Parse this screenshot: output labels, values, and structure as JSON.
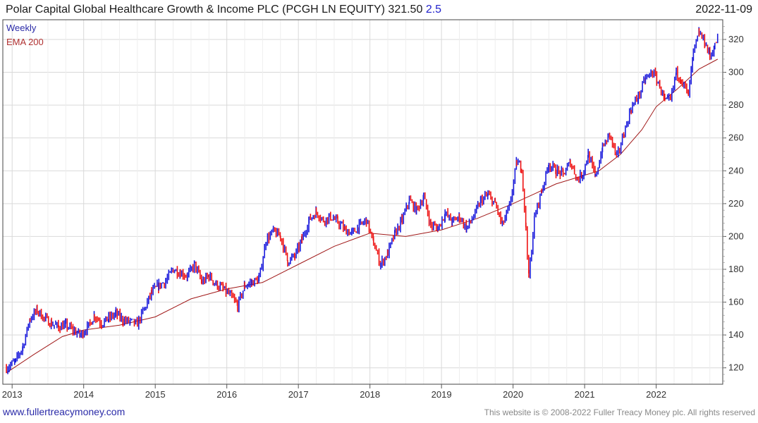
{
  "header": {
    "title": "Polar Capital Global Healthcare Growth & Income PLC (PCGH LN EQUITY) 321.50",
    "change": "2.5",
    "date": "2022-11-09"
  },
  "legend": {
    "weekly": "Weekly",
    "ema": "EMA 200"
  },
  "footer": {
    "site": "www.fullertreacymoney.com",
    "copyright": "This website is © 2008-2022 Fuller Treacy Money plc. All rights reserved"
  },
  "colors": {
    "up": "#1a1adc",
    "down": "#ee1111",
    "ema": "#a01818",
    "grid": "#d9d9d9"
  },
  "chart_data": {
    "type": "line",
    "style": "weekly price bars (blue up / red down) with EMA 200 overlay",
    "y_ticks": [
      120,
      140,
      160,
      180,
      200,
      220,
      240,
      260,
      280,
      300,
      320
    ],
    "x_ticks": [
      "2013",
      "2014",
      "2015",
      "2016",
      "2017",
      "2018",
      "2019",
      "2020",
      "2021",
      "2022"
    ],
    "ylim": [
      110,
      332
    ],
    "xlim": [
      2012.87,
      2022.93
    ],
    "grid": true,
    "series": [
      {
        "name": "Weekly",
        "x": [
          2012.92,
          2013.05,
          2013.15,
          2013.25,
          2013.35,
          2013.45,
          2013.55,
          2013.65,
          2013.75,
          2013.85,
          2013.95,
          2014.05,
          2014.15,
          2014.25,
          2014.35,
          2014.45,
          2014.55,
          2014.65,
          2014.75,
          2014.85,
          2014.95,
          2015.05,
          2015.15,
          2015.25,
          2015.35,
          2015.45,
          2015.55,
          2015.65,
          2015.75,
          2015.85,
          2015.95,
          2016.05,
          2016.15,
          2016.25,
          2016.35,
          2016.45,
          2016.55,
          2016.65,
          2016.75,
          2016.85,
          2016.95,
          2017.05,
          2017.15,
          2017.25,
          2017.35,
          2017.45,
          2017.55,
          2017.65,
          2017.75,
          2017.85,
          2017.95,
          2018.05,
          2018.15,
          2018.25,
          2018.35,
          2018.45,
          2018.55,
          2018.65,
          2018.75,
          2018.85,
          2018.95,
          2019.05,
          2019.15,
          2019.25,
          2019.35,
          2019.45,
          2019.55,
          2019.65,
          2019.75,
          2019.85,
          2019.95,
          2020.05,
          2020.12,
          2020.18,
          2020.22,
          2020.3,
          2020.4,
          2020.5,
          2020.6,
          2020.7,
          2020.8,
          2020.9,
          2020.97,
          2021.05,
          2021.15,
          2021.25,
          2021.35,
          2021.45,
          2021.55,
          2021.65,
          2021.75,
          2021.85,
          2021.95,
          2022.05,
          2022.12,
          2022.2,
          2022.28,
          2022.35,
          2022.45,
          2022.52,
          2022.6,
          2022.68,
          2022.75,
          2022.82,
          2022.86
        ],
        "values": [
          120,
          124,
          133,
          150,
          155,
          150,
          147,
          145,
          146,
          143,
          140,
          144,
          152,
          147,
          150,
          153,
          149,
          148,
          147,
          156,
          166,
          170,
          173,
          180,
          178,
          176,
          183,
          172,
          176,
          171,
          168,
          164,
          158,
          170,
          172,
          174,
          198,
          203,
          200,
          185,
          188,
          198,
          210,
          215,
          210,
          212,
          209,
          204,
          202,
          206,
          210,
          196,
          183,
          190,
          202,
          210,
          222,
          216,
          224,
          207,
          205,
          214,
          209,
          212,
          205,
          212,
          222,
          225,
          220,
          207,
          218,
          245,
          242,
          205,
          175,
          212,
          228,
          244,
          240,
          238,
          245,
          235,
          238,
          250,
          236,
          254,
          262,
          248,
          263,
          278,
          285,
          296,
          300,
          292,
          282,
          283,
          300,
          296,
          286,
          312,
          324,
          318,
          310,
          316,
          321.5
        ]
      },
      {
        "name": "EMA 200",
        "x": [
          2012.92,
          2013.3,
          2013.7,
          2014.0,
          2014.5,
          2015.0,
          2015.5,
          2016.0,
          2016.5,
          2017.0,
          2017.5,
          2018.0,
          2018.5,
          2019.0,
          2019.5,
          2020.0,
          2020.3,
          2020.6,
          2020.9,
          2021.2,
          2021.5,
          2021.8,
          2022.0,
          2022.3,
          2022.6,
          2022.86
        ],
        "values": [
          117,
          128,
          139,
          143,
          146,
          151,
          162,
          168,
          172,
          183,
          194,
          202,
          200,
          204,
          211,
          220,
          226,
          232,
          236,
          240,
          250,
          265,
          279,
          290,
          302,
          308
        ]
      }
    ]
  }
}
